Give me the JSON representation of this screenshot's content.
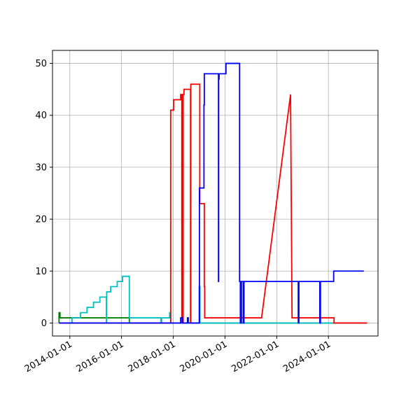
{
  "chart_data": {
    "type": "line",
    "title": "",
    "xlabel": "",
    "ylabel": "",
    "x_type": "date",
    "xlim": [
      "2013-05-01",
      "2025-12-01"
    ],
    "ylim": [
      -2.5,
      52.5
    ],
    "grid": true,
    "legend": "none",
    "x_ticks": [
      {
        "value": "2014-01-01",
        "label": "2014-01-01"
      },
      {
        "value": "2016-01-01",
        "label": "2016-01-01"
      },
      {
        "value": "2018-01-01",
        "label": "2018-01-01"
      },
      {
        "value": "2020-01-01",
        "label": "2020-01-01"
      },
      {
        "value": "2022-01-01",
        "label": "2022-01-01"
      },
      {
        "value": "2024-01-01",
        "label": "2024-01-01"
      }
    ],
    "y_ticks": [
      {
        "value": 0,
        "label": "0"
      },
      {
        "value": 10,
        "label": "10"
      },
      {
        "value": 20,
        "label": "20"
      },
      {
        "value": 30,
        "label": "30"
      },
      {
        "value": 40,
        "label": "40"
      },
      {
        "value": 50,
        "label": "50"
      }
    ],
    "series": [
      {
        "color": "#008000",
        "points": [
          [
            "2013-08-01",
            0
          ],
          [
            "2013-08-01",
            2
          ],
          [
            "2013-08-15",
            2
          ],
          [
            "2013-08-15",
            1
          ],
          [
            "2016-04-20",
            1
          ],
          [
            "2016-04-20",
            0
          ],
          [
            "2025-07-01",
            0
          ]
        ]
      },
      {
        "color": "#00bfbf",
        "points": [
          [
            "2013-08-01",
            0
          ],
          [
            "2014-02-01",
            0
          ],
          [
            "2014-02-01",
            1
          ],
          [
            "2014-06-01",
            1
          ],
          [
            "2014-06-01",
            2
          ],
          [
            "2014-09-01",
            2
          ],
          [
            "2014-09-01",
            3
          ],
          [
            "2014-12-01",
            3
          ],
          [
            "2014-12-01",
            4
          ],
          [
            "2015-03-01",
            4
          ],
          [
            "2015-03-01",
            5
          ],
          [
            "2015-06-01",
            5
          ],
          [
            "2015-06-01",
            0
          ],
          [
            "2015-06-05",
            0
          ],
          [
            "2015-06-05",
            6
          ],
          [
            "2015-08-01",
            6
          ],
          [
            "2015-08-01",
            7
          ],
          [
            "2015-11-01",
            7
          ],
          [
            "2015-11-01",
            8
          ],
          [
            "2016-01-15",
            8
          ],
          [
            "2016-01-15",
            9
          ],
          [
            "2016-04-20",
            9
          ],
          [
            "2016-04-20",
            1
          ],
          [
            "2017-07-10",
            1
          ],
          [
            "2017-07-10",
            0
          ],
          [
            "2017-07-20",
            0
          ],
          [
            "2017-07-20",
            1
          ],
          [
            "2017-11-10",
            1
          ],
          [
            "2017-11-10",
            2
          ],
          [
            "2017-11-25",
            2
          ],
          [
            "2017-11-25",
            0
          ],
          [
            "2019-01-01",
            0
          ],
          [
            "2019-01-01",
            7
          ],
          [
            "2019-01-12",
            7
          ],
          [
            "2019-01-12",
            0
          ],
          [
            "2025-07-01",
            0
          ]
        ]
      },
      {
        "color": "#ff0000",
        "points": [
          [
            "2013-08-01",
            0
          ],
          [
            "2017-11-25",
            0
          ],
          [
            "2017-11-25",
            41
          ],
          [
            "2018-01-05",
            41
          ],
          [
            "2018-01-05",
            43
          ],
          [
            "2018-04-15",
            43
          ],
          [
            "2018-04-15",
            44
          ],
          [
            "2018-05-01",
            44
          ],
          [
            "2018-05-01",
            0
          ],
          [
            "2018-05-05",
            0
          ],
          [
            "2018-05-05",
            44
          ],
          [
            "2018-05-15",
            44
          ],
          [
            "2018-05-15",
            0
          ],
          [
            "2018-05-20",
            0
          ],
          [
            "2018-05-20",
            44
          ],
          [
            "2018-06-01",
            44
          ],
          [
            "2018-06-01",
            45
          ],
          [
            "2018-09-01",
            45
          ],
          [
            "2018-09-01",
            0
          ],
          [
            "2018-09-05",
            0
          ],
          [
            "2018-09-05",
            46
          ],
          [
            "2019-01-10",
            46
          ],
          [
            "2019-01-10",
            23
          ],
          [
            "2019-03-15",
            23
          ],
          [
            "2019-03-15",
            7
          ],
          [
            "2019-03-20",
            7
          ],
          [
            "2019-03-20",
            1
          ],
          [
            "2021-06-01",
            1
          ],
          [
            "2022-07-15",
            44
          ],
          [
            "2022-08-05",
            1
          ],
          [
            "2024-03-20",
            1
          ],
          [
            "2024-03-20",
            0
          ],
          [
            "2025-07-01",
            0
          ]
        ]
      },
      {
        "color": "#0000ff",
        "points": [
          [
            "2013-08-01",
            0
          ],
          [
            "2018-04-15",
            0
          ],
          [
            "2018-04-15",
            1
          ],
          [
            "2018-05-15",
            1
          ],
          [
            "2018-05-15",
            0
          ],
          [
            "2018-07-20",
            0
          ],
          [
            "2018-07-20",
            1
          ],
          [
            "2018-08-01",
            1
          ],
          [
            "2018-08-01",
            0
          ],
          [
            "2019-01-05",
            0
          ],
          [
            "2019-01-05",
            26
          ],
          [
            "2019-03-10",
            26
          ],
          [
            "2019-03-10",
            42
          ],
          [
            "2019-03-15",
            42
          ],
          [
            "2019-03-15",
            48
          ],
          [
            "2019-10-01",
            48
          ],
          [
            "2019-10-01",
            8
          ],
          [
            "2019-10-03",
            8
          ],
          [
            "2019-10-03",
            47
          ],
          [
            "2019-10-10",
            47
          ],
          [
            "2019-10-10",
            48
          ],
          [
            "2020-01-15",
            48
          ],
          [
            "2020-01-15",
            50
          ],
          [
            "2020-07-25",
            50
          ],
          [
            "2020-07-25",
            8
          ],
          [
            "2020-08-05",
            8
          ],
          [
            "2020-08-05",
            0
          ],
          [
            "2020-08-20",
            0
          ],
          [
            "2020-08-20",
            8
          ],
          [
            "2020-09-15",
            8
          ],
          [
            "2020-09-15",
            0
          ],
          [
            "2020-09-25",
            0
          ],
          [
            "2020-09-25",
            8
          ],
          [
            "2022-11-01",
            8
          ],
          [
            "2022-11-01",
            0
          ],
          [
            "2022-11-10",
            0
          ],
          [
            "2022-11-10",
            8
          ],
          [
            "2023-09-01",
            8
          ],
          [
            "2023-09-01",
            0
          ],
          [
            "2023-09-10",
            0
          ],
          [
            "2023-09-10",
            8
          ],
          [
            "2024-03-15",
            8
          ],
          [
            "2024-03-15",
            10
          ],
          [
            "2025-05-15",
            10
          ]
        ]
      }
    ]
  }
}
